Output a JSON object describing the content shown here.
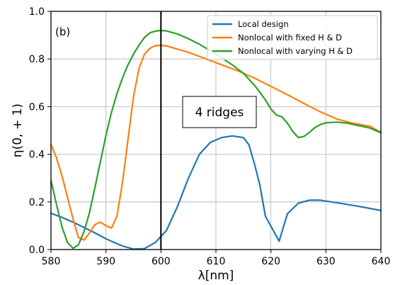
{
  "chart_data": {
    "type": "line",
    "panel_label": "(b)",
    "xlabel": "λ[nm]",
    "ylabel": "η(0, + 1)",
    "xlim": [
      580,
      640
    ],
    "ylim": [
      0.0,
      1.0
    ],
    "xticks": [
      580,
      590,
      600,
      610,
      620,
      630,
      640
    ],
    "yticks": [
      0.0,
      0.2,
      0.4,
      0.6,
      0.8,
      1.0
    ],
    "xtick_labels": [
      "580",
      "590",
      "600",
      "610",
      "620",
      "630",
      "640"
    ],
    "ytick_labels": [
      "0.0",
      "0.2",
      "0.4",
      "0.6",
      "0.8",
      "1.0"
    ],
    "grid": true,
    "legend_position": "top-right",
    "vline_x": 600,
    "annotation": "4 ridges",
    "series": [
      {
        "name": "Local design",
        "color": "#1f77b4",
        "x": [
          580,
          582,
          584,
          586,
          588,
          590,
          592,
          593,
          595,
          597,
          599,
          601,
          603,
          605,
          607,
          609,
          611,
          613,
          615,
          616,
          617,
          618,
          619,
          621.5,
          623,
          625,
          627,
          629,
          631,
          633,
          635,
          637,
          640
        ],
        "y": [
          0.152,
          0.135,
          0.115,
          0.093,
          0.07,
          0.045,
          0.025,
          0.015,
          0.002,
          0.004,
          0.03,
          0.08,
          0.18,
          0.3,
          0.4,
          0.45,
          0.47,
          0.477,
          0.47,
          0.44,
          0.36,
          0.27,
          0.14,
          0.035,
          0.15,
          0.195,
          0.207,
          0.207,
          0.2,
          0.193,
          0.185,
          0.177,
          0.164
        ]
      },
      {
        "name": "Nonlocal with  fixed H & D",
        "color": "#ff7f0e",
        "x": [
          580,
          581,
          582,
          583,
          584,
          585,
          586,
          587,
          588,
          589,
          590,
          591,
          592,
          593,
          594,
          595,
          596,
          597,
          598,
          599,
          600,
          601,
          602,
          605,
          608,
          611,
          614,
          617,
          620,
          623,
          626,
          629,
          632,
          635,
          638,
          640
        ],
        "y": [
          0.44,
          0.385,
          0.31,
          0.22,
          0.13,
          0.05,
          0.04,
          0.07,
          0.105,
          0.115,
          0.1,
          0.09,
          0.14,
          0.28,
          0.46,
          0.64,
          0.76,
          0.82,
          0.845,
          0.856,
          0.857,
          0.855,
          0.848,
          0.828,
          0.802,
          0.776,
          0.75,
          0.72,
          0.685,
          0.65,
          0.613,
          0.578,
          0.548,
          0.53,
          0.518,
          0.492
        ]
      },
      {
        "name": "Nonlocal with varying H & D",
        "color": "#2ca02c",
        "x": [
          580,
          581,
          582,
          583,
          584,
          585,
          586,
          587,
          588,
          589,
          590,
          591,
          592,
          593,
          594,
          595,
          596,
          597,
          598,
          599,
          600,
          601,
          603,
          605,
          607,
          609,
          611,
          613,
          615,
          617,
          618,
          619,
          620,
          621,
          622,
          623,
          624,
          625,
          626,
          627,
          628,
          629,
          630,
          632,
          634,
          636,
          638,
          640
        ],
        "y": [
          0.29,
          0.19,
          0.095,
          0.03,
          0.005,
          0.02,
          0.075,
          0.155,
          0.26,
          0.37,
          0.48,
          0.575,
          0.655,
          0.72,
          0.775,
          0.82,
          0.858,
          0.89,
          0.91,
          0.917,
          0.92,
          0.918,
          0.905,
          0.885,
          0.862,
          0.835,
          0.805,
          0.775,
          0.74,
          0.69,
          0.66,
          0.628,
          0.59,
          0.565,
          0.557,
          0.53,
          0.495,
          0.47,
          0.475,
          0.492,
          0.512,
          0.525,
          0.532,
          0.535,
          0.53,
          0.52,
          0.51,
          0.49
        ]
      }
    ]
  }
}
